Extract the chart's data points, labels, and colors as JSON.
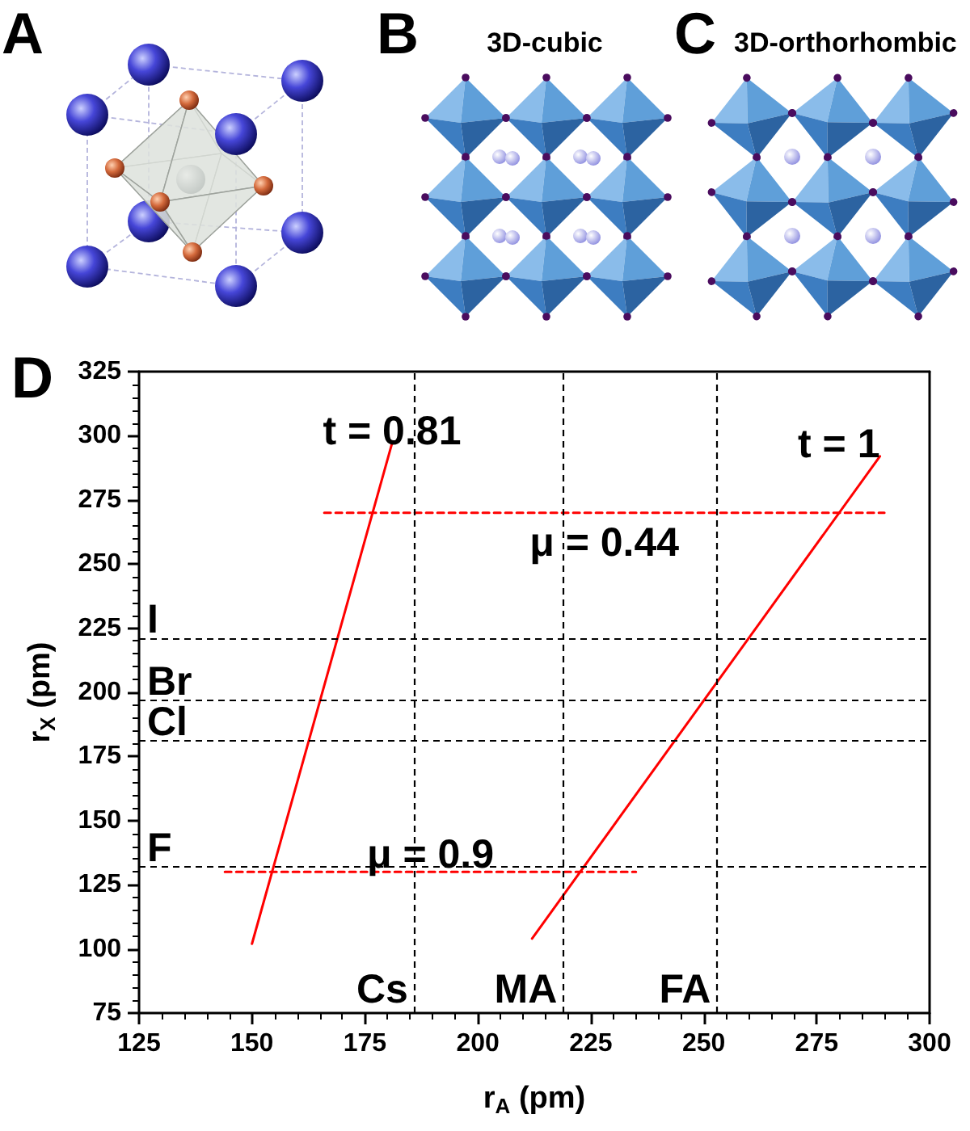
{
  "chart_data": {
    "type": "line",
    "xlabel": "r$_{A}$ (pm)",
    "ylabel": "r$_{X}$ (pm)",
    "xlim": [
      125,
      300
    ],
    "xticks": [
      125,
      150,
      175,
      200,
      225,
      250,
      275,
      300
    ],
    "ylim": [
      75,
      325
    ],
    "yticks": [
      75,
      100,
      125,
      150,
      175,
      200,
      225,
      250,
      275,
      300,
      325
    ],
    "grid": false,
    "legend": false,
    "marker": "none",
    "series": [
      {
        "name": "t = 0.81",
        "color": "#ff0000",
        "x": [
          150,
          181
        ],
        "values": [
          102,
          297
        ]
      },
      {
        "name": "t = 1",
        "color": "#ff0000",
        "x": [
          212,
          289
        ],
        "values": [
          104,
          292
        ]
      },
      {
        "name": "μ = 0.44",
        "color": "#ff0000",
        "x": [
          166,
          290
        ],
        "values": [
          270,
          270
        ],
        "line_style": "dashed"
      },
      {
        "name": "μ = 0.9",
        "color": "#ff0000",
        "x": [
          144,
          235
        ],
        "values": [
          130,
          130
        ],
        "line_style": "dashed"
      }
    ],
    "ref_lines": [
      {
        "axis": "y",
        "value": 221,
        "label": "I",
        "color": "#000000",
        "line_style": "dashed"
      },
      {
        "axis": "y",
        "value": 197,
        "label": "Br",
        "color": "#000000",
        "line_style": "dashed"
      },
      {
        "axis": "y",
        "value": 181,
        "label": "Cl",
        "color": "#000000",
        "line_style": "dashed"
      },
      {
        "axis": "y",
        "value": 132,
        "label": "F",
        "color": "#000000",
        "line_style": "dashed"
      },
      {
        "axis": "x",
        "value": 186,
        "label": "Cs",
        "color": "#000000",
        "line_style": "dashed"
      },
      {
        "axis": "x",
        "value": 219,
        "label": "MA",
        "color": "#000000",
        "line_style": "dashed"
      },
      {
        "axis": "x",
        "value": 253,
        "label": "FA",
        "color": "#000000",
        "line_style": "dashed"
      }
    ],
    "annotations": [
      "A",
      "B",
      "3D-cubic",
      "C",
      "3D-orthorhombic",
      "D"
    ]
  }
}
